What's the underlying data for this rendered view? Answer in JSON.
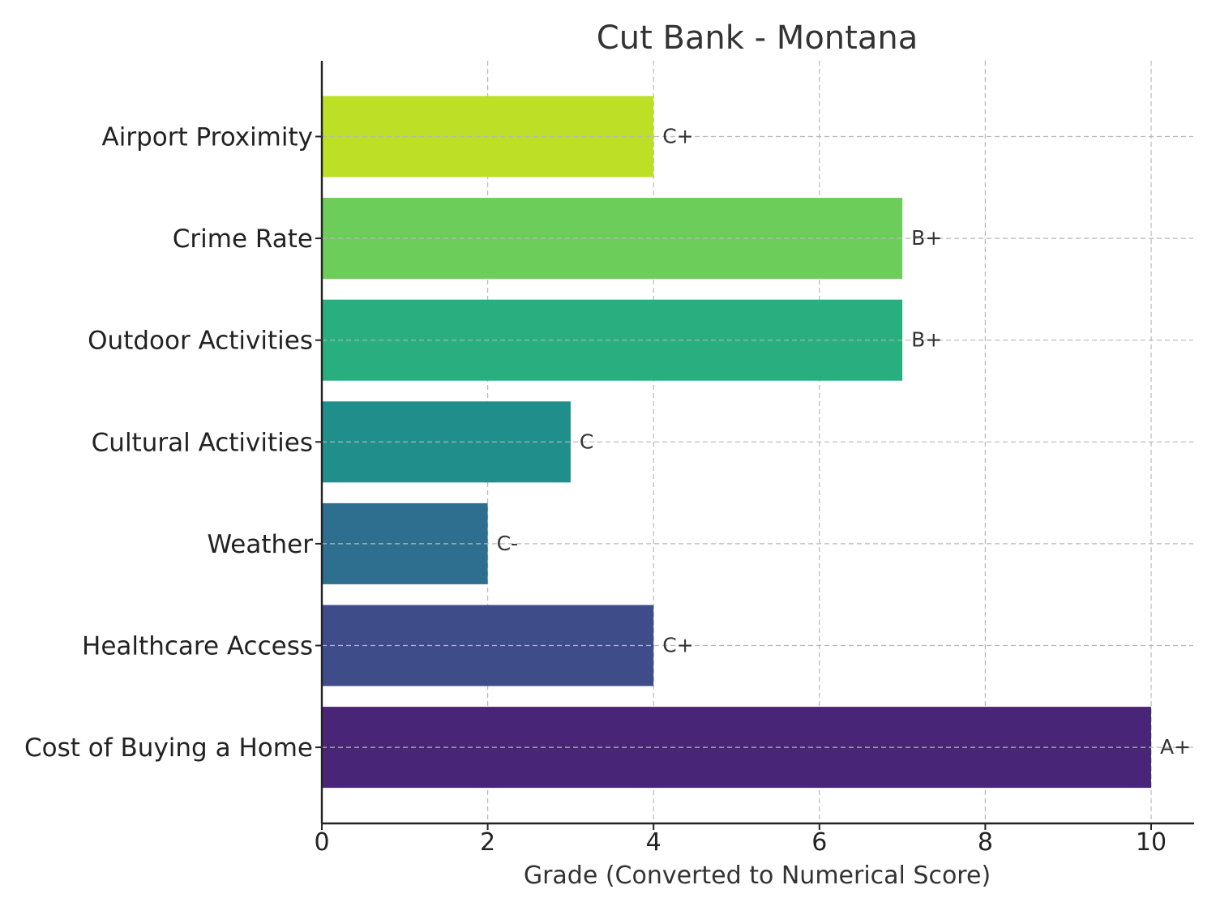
{
  "chart_data": {
    "type": "bar",
    "orientation": "horizontal",
    "title": "Cut Bank - Montana",
    "xlabel": "Grade (Converted to Numerical Score)",
    "ylabel": "",
    "xlim": [
      0,
      10.5
    ],
    "xticks": [
      0,
      2,
      4,
      6,
      8,
      10
    ],
    "grid": true,
    "categories": [
      "Airport Proximity",
      "Crime Rate",
      "Outdoor Activities",
      "Cultural Activities",
      "Weather",
      "Healthcare Access",
      "Cost of Buying a Home"
    ],
    "values": [
      4,
      7,
      7,
      3,
      2,
      4,
      10
    ],
    "bar_labels": [
      "C+",
      "B+",
      "B+",
      "C",
      "C-",
      "C+",
      "A+"
    ],
    "colors": [
      "#bddf26",
      "#6ccd5a",
      "#29af7f",
      "#208f8c",
      "#2e6e8e",
      "#3e4c8a",
      "#482576"
    ]
  }
}
